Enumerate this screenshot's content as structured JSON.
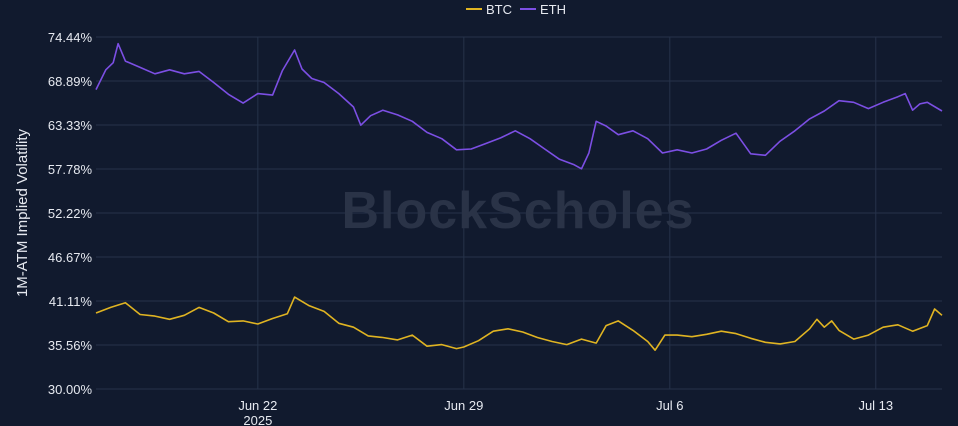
{
  "chart_data": {
    "type": "line",
    "ylabel": "1M-ATM Implied Volatility",
    "y_ticks": [
      "74.44%",
      "68.89%",
      "63.33%",
      "57.78%",
      "52.22%",
      "46.67%",
      "41.11%",
      "35.56%",
      "30.00%"
    ],
    "ylim": [
      30.0,
      74.44
    ],
    "x_ticks": [
      {
        "date": "2025-06-22",
        "label": "Jun 22",
        "sub": "2025"
      },
      {
        "date": "2025-06-29",
        "label": "Jun 29",
        "sub": ""
      },
      {
        "date": "2025-07-06",
        "label": "Jul 6",
        "sub": ""
      },
      {
        "date": "2025-07-13",
        "label": "Jul 13",
        "sub": ""
      }
    ],
    "xlim": [
      "2025-06-16T12:00",
      "2025-07-15T06:00"
    ],
    "grid": true,
    "legend": "top-center",
    "watermark": "BlockScholes",
    "series": [
      {
        "name": "BTC",
        "color": "#e0b422",
        "points": [
          [
            "2025-06-16T12:00",
            39.6
          ],
          [
            "2025-06-17T00:00",
            40.3
          ],
          [
            "2025-06-17T12:00",
            40.9
          ],
          [
            "2025-06-18T00:00",
            39.4
          ],
          [
            "2025-06-18T12:00",
            39.2
          ],
          [
            "2025-06-19T00:00",
            38.8
          ],
          [
            "2025-06-19T12:00",
            39.3
          ],
          [
            "2025-06-20T00:00",
            40.3
          ],
          [
            "2025-06-20T12:00",
            39.6
          ],
          [
            "2025-06-21T00:00",
            38.5
          ],
          [
            "2025-06-21T12:00",
            38.6
          ],
          [
            "2025-06-22T00:00",
            38.2
          ],
          [
            "2025-06-22T12:00",
            38.9
          ],
          [
            "2025-06-23T00:00",
            39.5
          ],
          [
            "2025-06-23T06:00",
            41.6
          ],
          [
            "2025-06-23T18:00",
            40.5
          ],
          [
            "2025-06-24T06:00",
            39.8
          ],
          [
            "2025-06-24T18:00",
            38.3
          ],
          [
            "2025-06-25T06:00",
            37.8
          ],
          [
            "2025-06-25T18:00",
            36.7
          ],
          [
            "2025-06-26T06:00",
            36.5
          ],
          [
            "2025-06-26T18:00",
            36.2
          ],
          [
            "2025-06-27T06:00",
            36.8
          ],
          [
            "2025-06-27T18:00",
            35.4
          ],
          [
            "2025-06-28T06:00",
            35.6
          ],
          [
            "2025-06-28T18:00",
            35.1
          ],
          [
            "2025-06-29T00:00",
            35.3
          ],
          [
            "2025-06-29T12:00",
            36.1
          ],
          [
            "2025-06-30T00:00",
            37.3
          ],
          [
            "2025-06-30T12:00",
            37.6
          ],
          [
            "2025-07-01T00:00",
            37.2
          ],
          [
            "2025-07-01T12:00",
            36.5
          ],
          [
            "2025-07-02T00:00",
            36.0
          ],
          [
            "2025-07-02T12:00",
            35.6
          ],
          [
            "2025-07-03T00:00",
            36.3
          ],
          [
            "2025-07-03T12:00",
            35.8
          ],
          [
            "2025-07-03T20:00",
            38.0
          ],
          [
            "2025-07-04T06:00",
            38.6
          ],
          [
            "2025-07-04T18:00",
            37.4
          ],
          [
            "2025-07-05T06:00",
            36.0
          ],
          [
            "2025-07-05T12:00",
            34.9
          ],
          [
            "2025-07-05T20:00",
            36.8
          ],
          [
            "2025-07-06T06:00",
            36.8
          ],
          [
            "2025-07-06T18:00",
            36.6
          ],
          [
            "2025-07-07T06:00",
            36.9
          ],
          [
            "2025-07-07T18:00",
            37.3
          ],
          [
            "2025-07-08T06:00",
            37.0
          ],
          [
            "2025-07-08T18:00",
            36.4
          ],
          [
            "2025-07-09T06:00",
            35.9
          ],
          [
            "2025-07-09T18:00",
            35.7
          ],
          [
            "2025-07-10T06:00",
            36.0
          ],
          [
            "2025-07-10T18:00",
            37.6
          ],
          [
            "2025-07-11T00:00",
            38.8
          ],
          [
            "2025-07-11T06:00",
            37.8
          ],
          [
            "2025-07-11T12:00",
            38.6
          ],
          [
            "2025-07-11T18:00",
            37.4
          ],
          [
            "2025-07-12T06:00",
            36.3
          ],
          [
            "2025-07-12T18:00",
            36.8
          ],
          [
            "2025-07-13T06:00",
            37.8
          ],
          [
            "2025-07-13T18:00",
            38.1
          ],
          [
            "2025-07-14T06:00",
            37.3
          ],
          [
            "2025-07-14T18:00",
            38.0
          ],
          [
            "2025-07-15T00:00",
            40.1
          ],
          [
            "2025-07-15T06:00",
            39.3
          ]
        ]
      },
      {
        "name": "ETH",
        "color": "#7c4fe4",
        "points": [
          [
            "2025-06-16T12:00",
            67.8
          ],
          [
            "2025-06-16T20:00",
            70.3
          ],
          [
            "2025-06-17T02:00",
            71.2
          ],
          [
            "2025-06-17T06:00",
            73.6
          ],
          [
            "2025-06-17T12:00",
            71.4
          ],
          [
            "2025-06-18T00:00",
            70.6
          ],
          [
            "2025-06-18T12:00",
            69.8
          ],
          [
            "2025-06-19T00:00",
            70.3
          ],
          [
            "2025-06-19T12:00",
            69.8
          ],
          [
            "2025-06-20T00:00",
            70.1
          ],
          [
            "2025-06-20T12:00",
            68.7
          ],
          [
            "2025-06-21T00:00",
            67.2
          ],
          [
            "2025-06-21T12:00",
            66.1
          ],
          [
            "2025-06-22T00:00",
            67.3
          ],
          [
            "2025-06-22T12:00",
            67.1
          ],
          [
            "2025-06-22T20:00",
            70.2
          ],
          [
            "2025-06-23T06:00",
            72.8
          ],
          [
            "2025-06-23T12:00",
            70.4
          ],
          [
            "2025-06-23T20:00",
            69.2
          ],
          [
            "2025-06-24T06:00",
            68.7
          ],
          [
            "2025-06-24T18:00",
            67.3
          ],
          [
            "2025-06-25T06:00",
            65.6
          ],
          [
            "2025-06-25T12:00",
            63.3
          ],
          [
            "2025-06-25T20:00",
            64.5
          ],
          [
            "2025-06-26T06:00",
            65.2
          ],
          [
            "2025-06-26T18:00",
            64.6
          ],
          [
            "2025-06-27T06:00",
            63.8
          ],
          [
            "2025-06-27T18:00",
            62.4
          ],
          [
            "2025-06-28T06:00",
            61.6
          ],
          [
            "2025-06-28T18:00",
            60.2
          ],
          [
            "2025-06-29T06:00",
            60.3
          ],
          [
            "2025-06-29T18:00",
            61.0
          ],
          [
            "2025-06-30T06:00",
            61.7
          ],
          [
            "2025-06-30T18:00",
            62.6
          ],
          [
            "2025-07-01T06:00",
            61.6
          ],
          [
            "2025-07-01T18:00",
            60.3
          ],
          [
            "2025-07-02T06:00",
            59.0
          ],
          [
            "2025-07-02T18:00",
            58.3
          ],
          [
            "2025-07-03T00:00",
            57.8
          ],
          [
            "2025-07-03T06:00",
            59.8
          ],
          [
            "2025-07-03T12:00",
            63.8
          ],
          [
            "2025-07-03T20:00",
            63.2
          ],
          [
            "2025-07-04T06:00",
            62.1
          ],
          [
            "2025-07-04T18:00",
            62.6
          ],
          [
            "2025-07-05T06:00",
            61.6
          ],
          [
            "2025-07-05T18:00",
            59.8
          ],
          [
            "2025-07-06T06:00",
            60.2
          ],
          [
            "2025-07-06T18:00",
            59.8
          ],
          [
            "2025-07-07T06:00",
            60.3
          ],
          [
            "2025-07-07T18:00",
            61.4
          ],
          [
            "2025-07-08T06:00",
            62.3
          ],
          [
            "2025-07-08T18:00",
            59.7
          ],
          [
            "2025-07-09T06:00",
            59.5
          ],
          [
            "2025-07-09T18:00",
            61.3
          ],
          [
            "2025-07-10T06:00",
            62.6
          ],
          [
            "2025-07-10T18:00",
            64.1
          ],
          [
            "2025-07-11T06:00",
            65.1
          ],
          [
            "2025-07-11T18:00",
            66.4
          ],
          [
            "2025-07-12T06:00",
            66.2
          ],
          [
            "2025-07-12T18:00",
            65.4
          ],
          [
            "2025-07-13T06:00",
            66.2
          ],
          [
            "2025-07-13T18:00",
            66.9
          ],
          [
            "2025-07-14T00:00",
            67.3
          ],
          [
            "2025-07-14T06:00",
            65.2
          ],
          [
            "2025-07-14T12:00",
            66.0
          ],
          [
            "2025-07-14T18:00",
            66.2
          ],
          [
            "2025-07-15T06:00",
            65.1
          ]
        ]
      }
    ]
  }
}
